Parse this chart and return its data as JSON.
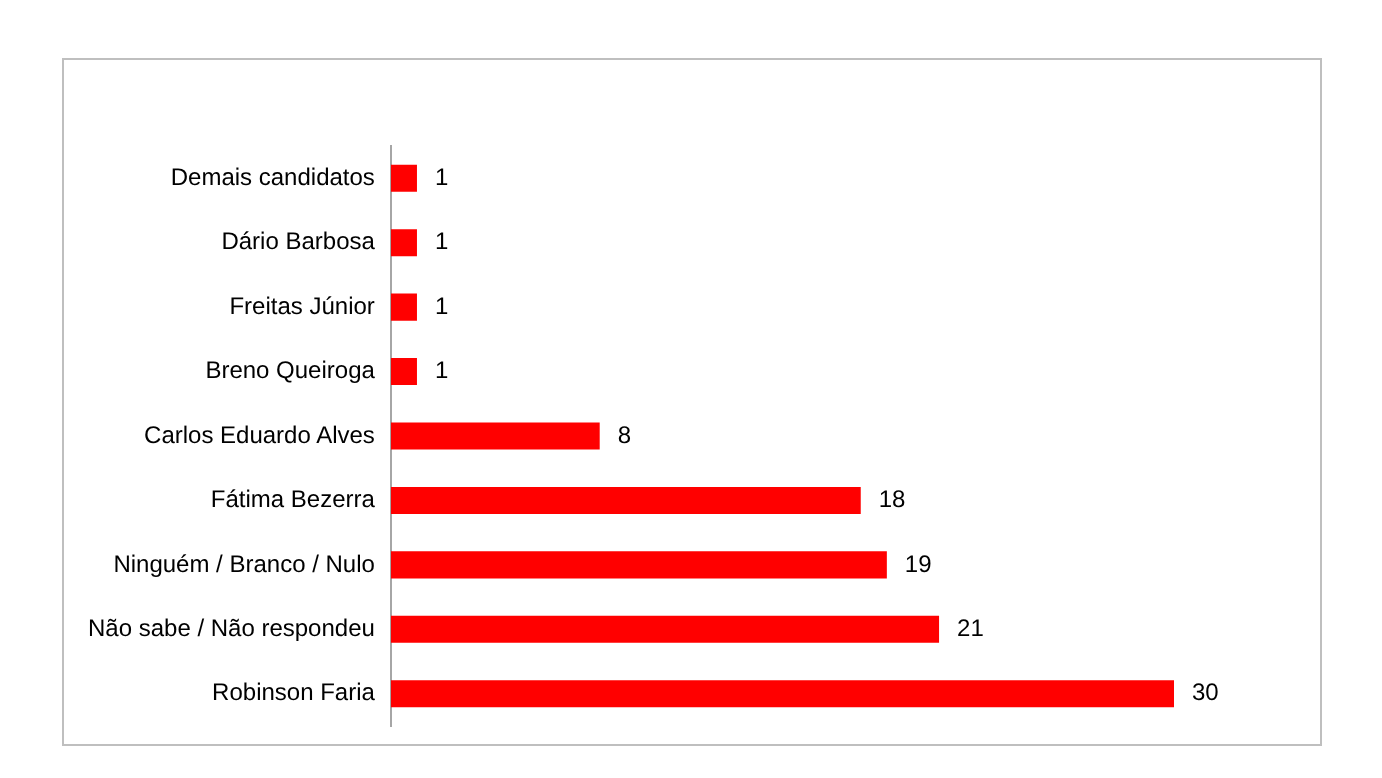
{
  "chart_data": {
    "type": "bar",
    "orientation": "horizontal",
    "categories": [
      "Demais candidatos",
      "Dário Barbosa",
      "Freitas Júnior",
      "Breno Queiroga",
      "Carlos Eduardo Alves",
      "Fátima Bezerra",
      "Ninguém / Branco / Nulo",
      "Não sabe / Não respondeu",
      "Robinson Faria"
    ],
    "values": [
      1,
      1,
      1,
      1,
      8,
      18,
      19,
      21,
      30
    ],
    "color": "#ff0000",
    "data_labels": true,
    "legend": false,
    "tick_labels": "y"
  }
}
